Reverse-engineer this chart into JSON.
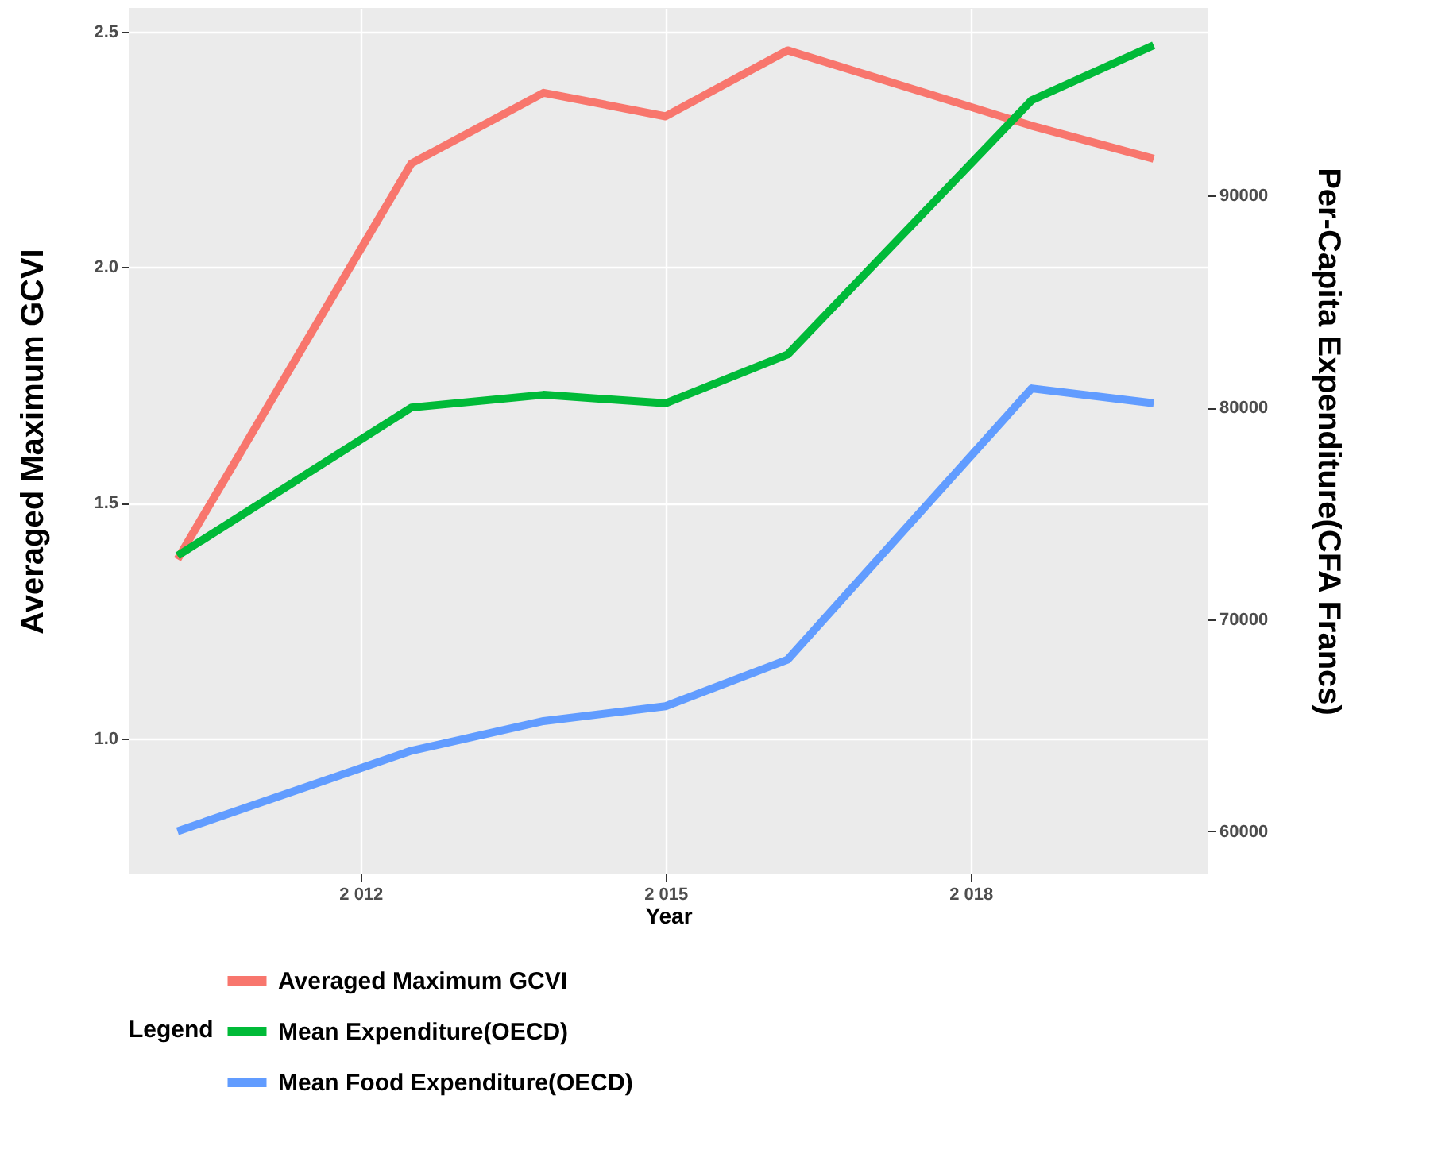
{
  "chart_data": {
    "type": "line",
    "xlabel": "Year",
    "ylabel": "Averaged Maximum GCVI",
    "y2label": "Per-Capita Expenditure(CFA Francs)",
    "legend_title": "Legend",
    "legend": "bottom",
    "grid": true,
    "marker": "none",
    "line_style": "solid",
    "x": [
      2010.2,
      2012.5,
      2013.8,
      2015,
      2016.2,
      2018.6,
      2019.8
    ],
    "xlim": [
      2009.72,
      2020.33
    ],
    "xticks": [
      {
        "value": 2012,
        "label": "2 012"
      },
      {
        "value": 2015,
        "label": "2 015"
      },
      {
        "value": 2018,
        "label": "2 018"
      }
    ],
    "ylim": [
      0.713,
      2.55
    ],
    "yticks": [
      {
        "value": 1,
        "label": "1.0"
      },
      {
        "value": 1.5,
        "label": "1.5"
      },
      {
        "value": 2,
        "label": "2.0"
      },
      {
        "value": 2.5,
        "label": "2.5"
      }
    ],
    "y2lim": [
      58000,
      98860
    ],
    "y2ticks": [
      60000,
      70000,
      80000,
      90000
    ],
    "series": [
      {
        "name": "Averaged Maximum GCVI",
        "color": "#f8766d",
        "values": [
          1.38,
          2.22,
          2.37,
          2.32,
          2.46,
          2.3,
          2.23
        ]
      },
      {
        "name": "Mean Expenditure(OECD)",
        "color": "#00ba38",
        "axis": "y2",
        "values": [
          73000,
          80000,
          80600,
          80200,
          82500,
          94500,
          97100
        ]
      },
      {
        "name": "Mean Food Expenditure(OECD)",
        "color": "#619cff",
        "axis": "y2",
        "values": [
          60000,
          63800,
          65200,
          65900,
          68100,
          80900,
          80200
        ]
      }
    ]
  }
}
